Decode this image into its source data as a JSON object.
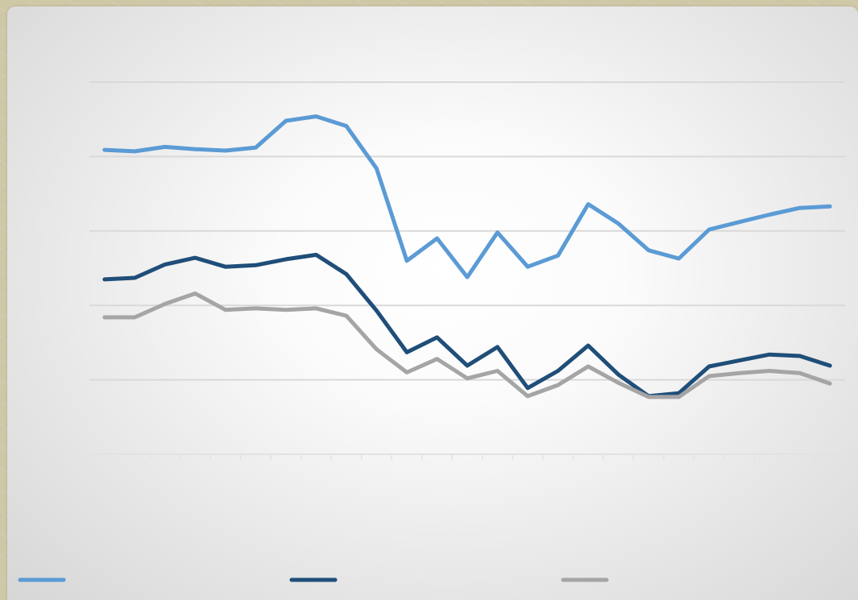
{
  "chart_data": {
    "type": "line",
    "title": "",
    "xlabel": "",
    "ylabel": "",
    "x_count": 25,
    "ylim": [
      0,
      5
    ],
    "grid": true,
    "legend_position": "bottom",
    "series": [
      {
        "color": "#5b9bd5",
        "values": [
          4.09,
          4.07,
          4.13,
          4.1,
          4.08,
          4.12,
          4.48,
          4.54,
          4.41,
          3.84,
          2.6,
          2.9,
          2.38,
          2.98,
          2.52,
          2.67,
          3.36,
          3.1,
          2.74,
          2.63,
          3.02,
          3.12,
          3.22,
          3.31,
          3.33
        ]
      },
      {
        "color": "#1f4e79",
        "values": [
          2.35,
          2.37,
          2.55,
          2.64,
          2.52,
          2.54,
          2.62,
          2.68,
          2.42,
          1.93,
          1.37,
          1.57,
          1.19,
          1.44,
          0.89,
          1.12,
          1.46,
          1.07,
          0.78,
          0.82,
          1.18,
          1.26,
          1.34,
          1.32,
          1.19
        ]
      },
      {
        "color": "#a5a5a5",
        "values": [
          1.84,
          1.84,
          2.02,
          2.16,
          1.94,
          1.96,
          1.94,
          1.96,
          1.86,
          1.41,
          1.1,
          1.28,
          1.02,
          1.12,
          0.78,
          0.93,
          1.18,
          0.96,
          0.77,
          0.77,
          1.05,
          1.09,
          1.12,
          1.09,
          0.95
        ]
      }
    ]
  }
}
